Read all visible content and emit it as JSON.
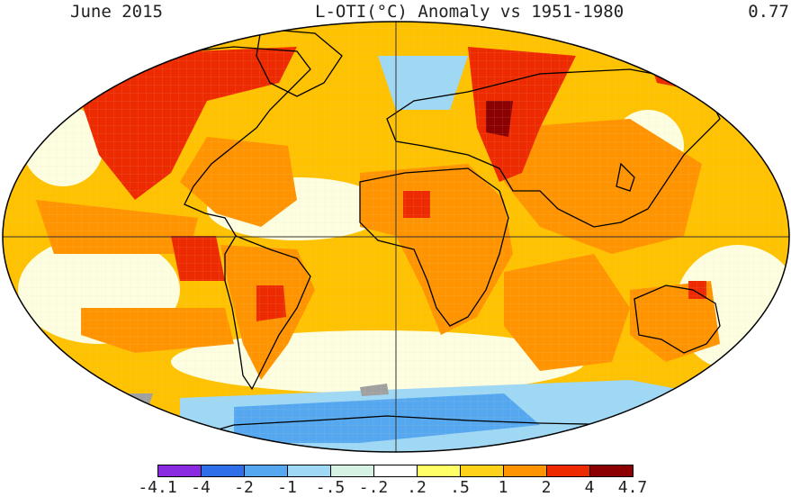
{
  "header": {
    "date": "June 2015",
    "title": "L-OTI(°C) Anomaly vs 1951-1980",
    "global_mean": "0.77"
  },
  "legend": {
    "labels": [
      "-4.1",
      "-4",
      "-2",
      "-1",
      "-.5",
      "-.2",
      ".2",
      ".5",
      "1",
      "2",
      "4",
      "4.7"
    ],
    "colors": [
      "#8a2be2",
      "#2e6ee8",
      "#55a8f0",
      "#9ed8f5",
      "#d6f2e2",
      "#ffffff",
      "#ffff66",
      "#ffd21a",
      "#ff9400",
      "#ee2a00",
      "#8b0000"
    ]
  },
  "map": {
    "projection": "Robinson",
    "colors": {
      "ocean_warm": "#ffc200",
      "land_warm": "#ff9400",
      "neutral": "#fdfde0",
      "hot": "#ee2a00",
      "very_hot": "#8b0000",
      "cold": "#55a8f0",
      "cool": "#9ed8f5",
      "no_data": "#a0a0a0",
      "coastline": "#000000"
    }
  }
}
